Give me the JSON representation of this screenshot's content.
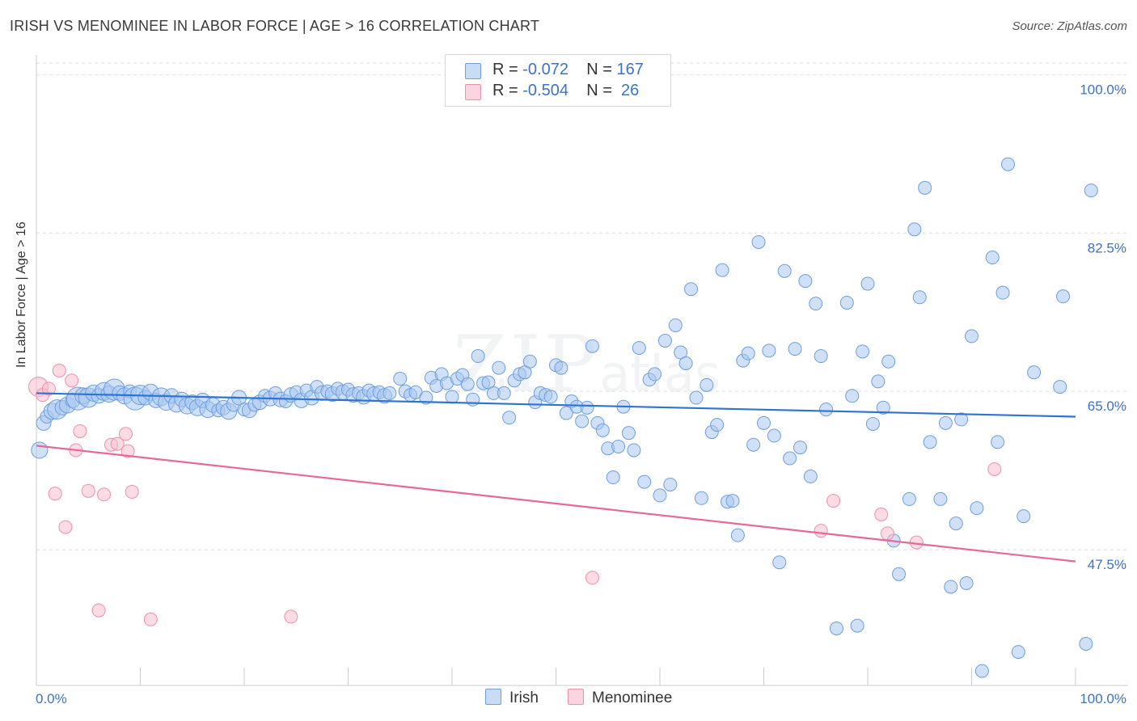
{
  "title": "IRISH VS MENOMINEE IN LABOR FORCE | AGE > 16 CORRELATION CHART",
  "source": "Source: ZipAtlas.com",
  "watermark": {
    "zip": "ZIP",
    "atlas": "atlas"
  },
  "legend": {
    "irish": {
      "r_label": "R =",
      "r_value": "-0.072",
      "n_label": "N =",
      "n_value": "167"
    },
    "menominee": {
      "r_label": "R =",
      "r_value": "-0.504",
      "n_label": "N =",
      "n_value": "26"
    }
  },
  "bottom_legend": {
    "irish": "Irish",
    "menominee": "Menominee"
  },
  "colors": {
    "irish_fill": "#a9c8f0",
    "irish_stroke": "#6d9ee0",
    "irish_line": "#2f73d0",
    "menominee_fill": "#f7bfd0",
    "menominee_stroke": "#ee8fab",
    "menominee_line": "#e8689a",
    "axis_label": "#3d72c8",
    "grid": "#dddddd"
  },
  "chart_data": {
    "type": "scatter",
    "title": "IRISH VS MENOMINEE IN LABOR FORCE | AGE > 16 CORRELATION CHART",
    "xlabel": "",
    "ylabel": "In Labor Force | Age > 16",
    "xlim": [
      0,
      100
    ],
    "ylim": [
      32.5,
      102
    ],
    "x_tick_labels": [
      "0.0%",
      "100.0%"
    ],
    "y_ticks": [
      47.5,
      65.0,
      82.5,
      100.0
    ],
    "y_tick_labels": [
      "47.5%",
      "65.0%",
      "82.5%",
      "100.0%"
    ],
    "grid": true,
    "series": [
      {
        "name": "Irish",
        "r": -0.072,
        "n": 167,
        "trend": {
          "x": [
            0,
            100
          ],
          "y": [
            64.8,
            62.2
          ]
        },
        "points": [
          [
            0.3,
            58.5,
            10
          ],
          [
            0.7,
            61.5,
            9
          ],
          [
            1.0,
            62.2,
            8
          ],
          [
            1.5,
            62.8,
            10
          ],
          [
            2.0,
            63.0,
            12
          ],
          [
            2.5,
            63.2,
            9
          ],
          [
            3.0,
            63.5,
            10
          ],
          [
            3.5,
            64.0,
            9
          ],
          [
            4.0,
            64.2,
            14
          ],
          [
            4.5,
            64.5,
            10
          ],
          [
            5.0,
            64.3,
            12
          ],
          [
            5.5,
            64.8,
            10
          ],
          [
            6.0,
            64.5,
            9
          ],
          [
            6.5,
            65.0,
            11
          ],
          [
            7.0,
            64.7,
            10
          ],
          [
            7.5,
            65.2,
            13
          ],
          [
            8.0,
            64.8,
            9
          ],
          [
            8.5,
            64.5,
            10
          ],
          [
            9.0,
            65.0,
            8
          ],
          [
            9.5,
            64.2,
            14
          ],
          [
            10.0,
            64.6,
            12
          ],
          [
            10.5,
            64.3,
            9
          ],
          [
            11.0,
            64.9,
            10
          ],
          [
            11.5,
            64.0,
            9
          ],
          [
            12.0,
            64.4,
            11
          ],
          [
            12.5,
            63.8,
            10
          ],
          [
            13.0,
            64.5,
            9
          ],
          [
            13.5,
            63.6,
            10
          ],
          [
            14.0,
            64.1,
            9
          ],
          [
            14.5,
            63.4,
            10
          ],
          [
            15.0,
            63.8,
            9
          ],
          [
            15.5,
            63.2,
            10
          ],
          [
            16.0,
            64.0,
            9
          ],
          [
            16.5,
            63.0,
            10
          ],
          [
            17.0,
            63.5,
            9
          ],
          [
            17.5,
            62.9,
            8
          ],
          [
            18.0,
            63.2,
            9
          ],
          [
            18.5,
            62.8,
            10
          ],
          [
            19.0,
            63.6,
            9
          ],
          [
            19.5,
            64.3,
            9
          ],
          [
            20.0,
            63.0,
            8
          ],
          [
            20.5,
            62.9,
            9
          ],
          [
            21.0,
            63.5,
            8
          ],
          [
            21.5,
            63.8,
            9
          ],
          [
            22.0,
            64.5,
            8
          ],
          [
            22.5,
            64.2,
            9
          ],
          [
            23.0,
            64.8,
            8
          ],
          [
            23.5,
            64.1,
            9
          ],
          [
            24.0,
            63.9,
            8
          ],
          [
            24.5,
            64.6,
            9
          ],
          [
            25.0,
            64.9,
            8
          ],
          [
            25.5,
            64.0,
            9
          ],
          [
            26.0,
            65.1,
            8
          ],
          [
            26.5,
            64.3,
            9
          ],
          [
            27.0,
            65.5,
            8
          ],
          [
            27.5,
            64.8,
            9
          ],
          [
            28.0,
            65.0,
            8
          ],
          [
            28.5,
            64.7,
            9
          ],
          [
            29.0,
            65.3,
            8
          ],
          [
            29.5,
            64.9,
            9
          ],
          [
            30.0,
            65.2,
            8
          ],
          [
            30.5,
            64.6,
            9
          ],
          [
            31.0,
            64.8,
            8
          ],
          [
            31.5,
            64.4,
            9
          ],
          [
            32.0,
            65.1,
            8
          ],
          [
            32.5,
            64.7,
            9
          ],
          [
            33.0,
            64.9,
            8
          ],
          [
            33.5,
            64.5,
            9
          ],
          [
            34.0,
            64.8,
            8
          ],
          [
            35.0,
            66.4,
            8
          ],
          [
            35.5,
            65.0,
            8
          ],
          [
            36.0,
            64.6,
            8
          ],
          [
            36.5,
            64.9,
            8
          ],
          [
            37.5,
            64.3,
            8
          ],
          [
            38.0,
            66.5,
            8
          ],
          [
            38.5,
            65.6,
            8
          ],
          [
            39.0,
            66.9,
            8
          ],
          [
            39.5,
            65.9,
            8
          ],
          [
            40.0,
            64.4,
            8
          ],
          [
            40.5,
            66.4,
            8
          ],
          [
            41.0,
            66.8,
            8
          ],
          [
            41.5,
            65.8,
            8
          ],
          [
            42.0,
            64.1,
            8
          ],
          [
            42.5,
            68.9,
            8
          ],
          [
            43.0,
            65.9,
            8
          ],
          [
            43.5,
            66.0,
            8
          ],
          [
            44.0,
            64.8,
            8
          ],
          [
            44.5,
            67.6,
            8
          ],
          [
            45.0,
            64.8,
            8
          ],
          [
            45.5,
            62.1,
            8
          ],
          [
            46.0,
            66.2,
            8
          ],
          [
            46.5,
            66.9,
            8
          ],
          [
            47.0,
            67.1,
            8
          ],
          [
            47.5,
            68.3,
            8
          ],
          [
            48.0,
            63.8,
            8
          ],
          [
            48.5,
            64.8,
            8
          ],
          [
            49.0,
            64.6,
            8
          ],
          [
            49.5,
            64.4,
            8
          ],
          [
            50.0,
            67.9,
            8
          ],
          [
            50.5,
            67.6,
            8
          ],
          [
            51.0,
            62.6,
            8
          ],
          [
            51.5,
            63.9,
            8
          ],
          [
            52.0,
            63.3,
            8
          ],
          [
            52.5,
            61.7,
            8
          ],
          [
            53.0,
            63.2,
            8
          ],
          [
            53.5,
            70.0,
            8
          ],
          [
            54.0,
            61.5,
            8
          ],
          [
            54.5,
            60.7,
            8
          ],
          [
            55.0,
            58.7,
            8
          ],
          [
            55.5,
            55.5,
            8
          ],
          [
            56.0,
            58.9,
            8
          ],
          [
            56.5,
            63.3,
            8
          ],
          [
            57.0,
            60.4,
            8
          ],
          [
            57.5,
            58.5,
            8
          ],
          [
            58.0,
            69.8,
            8
          ],
          [
            58.5,
            55.0,
            8
          ],
          [
            59.0,
            66.3,
            8
          ],
          [
            59.5,
            66.9,
            8
          ],
          [
            60.0,
            53.5,
            8
          ],
          [
            60.5,
            70.6,
            8
          ],
          [
            61.0,
            54.7,
            8
          ],
          [
            61.5,
            72.3,
            8
          ],
          [
            62.0,
            69.3,
            8
          ],
          [
            62.5,
            68.1,
            8
          ],
          [
            63.0,
            76.3,
            8
          ],
          [
            63.5,
            64.3,
            8
          ],
          [
            64.0,
            53.2,
            8
          ],
          [
            64.5,
            65.7,
            8
          ],
          [
            65.0,
            60.5,
            8
          ],
          [
            65.5,
            61.3,
            8
          ],
          [
            66.0,
            78.4,
            8
          ],
          [
            66.5,
            52.8,
            8
          ],
          [
            67.0,
            52.9,
            8
          ],
          [
            67.5,
            49.1,
            8
          ],
          [
            68.0,
            68.4,
            8
          ],
          [
            68.5,
            69.2,
            8
          ],
          [
            69.0,
            59.1,
            8
          ],
          [
            69.5,
            81.5,
            8
          ],
          [
            70.0,
            61.5,
            8
          ],
          [
            70.5,
            69.5,
            8
          ],
          [
            71.0,
            60.1,
            8
          ],
          [
            71.5,
            46.1,
            8
          ],
          [
            72.0,
            78.3,
            8
          ],
          [
            72.5,
            57.6,
            8
          ],
          [
            73.0,
            69.7,
            8
          ],
          [
            73.5,
            58.8,
            8
          ],
          [
            74.0,
            77.2,
            8
          ],
          [
            74.5,
            55.6,
            8
          ],
          [
            75.0,
            74.7,
            8
          ],
          [
            75.5,
            68.9,
            8
          ],
          [
            76.0,
            63.0,
            8
          ],
          [
            77.0,
            38.8,
            8
          ],
          [
            78.0,
            74.8,
            8
          ],
          [
            78.5,
            64.5,
            8
          ],
          [
            79.0,
            39.1,
            8
          ],
          [
            79.5,
            69.4,
            8
          ],
          [
            80.0,
            76.9,
            8
          ],
          [
            80.5,
            61.4,
            8
          ],
          [
            81.0,
            66.1,
            8
          ],
          [
            81.5,
            63.2,
            8
          ],
          [
            82.0,
            68.3,
            8
          ],
          [
            82.5,
            48.5,
            8
          ],
          [
            83.0,
            44.8,
            8
          ],
          [
            84.0,
            53.1,
            8
          ],
          [
            84.5,
            82.9,
            8
          ],
          [
            85.0,
            75.4,
            8
          ],
          [
            85.5,
            87.5,
            8
          ],
          [
            86.0,
            59.4,
            8
          ],
          [
            87.0,
            53.1,
            8
          ],
          [
            87.5,
            61.5,
            8
          ],
          [
            88.0,
            43.4,
            8
          ],
          [
            88.5,
            50.4,
            8
          ],
          [
            89.0,
            61.9,
            8
          ],
          [
            89.5,
            43.8,
            8
          ],
          [
            90.0,
            71.1,
            8
          ],
          [
            90.5,
            52.1,
            8
          ],
          [
            91.0,
            34.1,
            8
          ],
          [
            92.0,
            79.8,
            8
          ],
          [
            92.5,
            59.4,
            8
          ],
          [
            93.0,
            75.9,
            8
          ],
          [
            93.5,
            90.1,
            8
          ],
          [
            94.5,
            36.2,
            8
          ],
          [
            95.0,
            51.2,
            8
          ],
          [
            96.0,
            67.1,
            8
          ],
          [
            98.5,
            65.5,
            8
          ],
          [
            98.8,
            75.5,
            8
          ],
          [
            101.0,
            37.1,
            8
          ],
          [
            101.5,
            87.2,
            8
          ]
        ]
      },
      {
        "name": "Menominee",
        "r": -0.504,
        "n": 26,
        "trend": {
          "x": [
            0,
            100
          ],
          "y": [
            59.0,
            46.2
          ]
        },
        "points": [
          [
            0.2,
            65.5,
            12
          ],
          [
            0.6,
            64.6,
            8
          ],
          [
            1.2,
            65.3,
            8
          ],
          [
            1.8,
            53.7,
            8
          ],
          [
            2.2,
            67.3,
            8
          ],
          [
            2.8,
            50.0,
            8
          ],
          [
            3.4,
            66.2,
            8
          ],
          [
            3.8,
            58.5,
            8
          ],
          [
            4.2,
            60.6,
            8
          ],
          [
            5.0,
            54.0,
            8
          ],
          [
            6.0,
            40.8,
            8
          ],
          [
            6.5,
            53.6,
            8
          ],
          [
            7.2,
            59.1,
            8
          ],
          [
            7.8,
            59.2,
            8
          ],
          [
            8.6,
            60.3,
            8
          ],
          [
            8.8,
            58.4,
            8
          ],
          [
            9.2,
            53.9,
            8
          ],
          [
            11.0,
            39.8,
            8
          ],
          [
            24.5,
            40.1,
            8
          ],
          [
            53.5,
            44.4,
            8
          ],
          [
            75.5,
            49.6,
            8
          ],
          [
            76.7,
            52.9,
            8
          ],
          [
            81.3,
            51.4,
            8
          ],
          [
            81.9,
            49.3,
            8
          ],
          [
            84.7,
            48.3,
            8
          ],
          [
            92.2,
            56.4,
            8
          ]
        ]
      }
    ]
  }
}
